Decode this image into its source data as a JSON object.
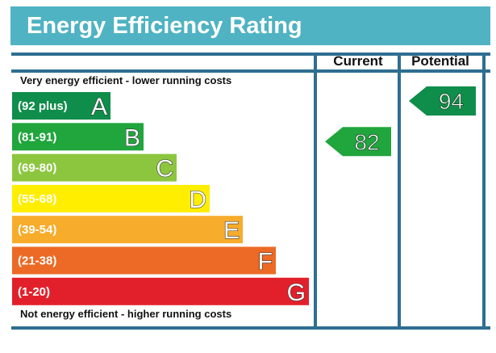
{
  "header": {
    "title": "Energy Efficiency Rating"
  },
  "colors": {
    "title_bar": "#4fb3c3",
    "frame": "#2e6e91"
  },
  "columns": {
    "current": "Current",
    "potential": "Potential"
  },
  "notes": {
    "top": "Very energy efficient - lower running costs",
    "bottom": "Not energy efficient - higher running costs"
  },
  "chart_data": {
    "type": "bar",
    "title": "Energy Efficiency Rating",
    "bands": [
      {
        "letter": "A",
        "range": "(92 plus)",
        "color": "#0f8d4a"
      },
      {
        "letter": "B",
        "range": "(81-91)",
        "color": "#21a53d"
      },
      {
        "letter": "C",
        "range": "(69-80)",
        "color": "#8cc63f"
      },
      {
        "letter": "D",
        "range": "(55-68)",
        "color": "#ffee00"
      },
      {
        "letter": "E",
        "range": "(39-54)",
        "color": "#f7ac2b"
      },
      {
        "letter": "F",
        "range": "(21-38)",
        "color": "#ec6a25"
      },
      {
        "letter": "G",
        "range": "(1-20)",
        "color": "#e2202b"
      }
    ],
    "ratings": {
      "current": {
        "value": 82,
        "band": "B",
        "color": "#21a53d"
      },
      "potential": {
        "value": 94,
        "band": "A",
        "color": "#0f8d4a"
      }
    }
  }
}
